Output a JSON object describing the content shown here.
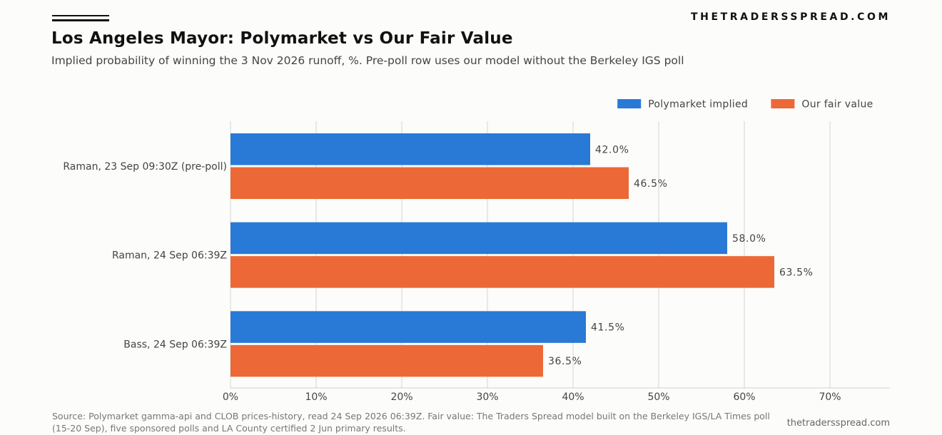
{
  "brand": "THETRADERSSPREAD.COM",
  "chart_data": {
    "type": "bar",
    "orientation": "horizontal",
    "title": "Los Angeles Mayor: Polymarket vs Our Fair Value",
    "subtitle": "Implied probability of winning the 3 Nov 2026 runoff, %. Pre-poll row uses our model without the Berkeley IGS poll",
    "categories": [
      "Raman, 23 Sep 09:30Z (pre-poll)",
      "Raman, 24 Sep 06:39Z",
      "Bass, 24 Sep 06:39Z"
    ],
    "series": [
      {
        "name": "Polymarket implied",
        "color": "#2979d6",
        "values": [
          42.0,
          58.0,
          41.5
        ],
        "labels": [
          "42.0%",
          "58.0%",
          "41.5%"
        ]
      },
      {
        "name": "Our fair value",
        "color": "#ec6836",
        "values": [
          46.5,
          63.5,
          36.5
        ],
        "labels": [
          "46.5%",
          "63.5%",
          "36.5%"
        ]
      }
    ],
    "xlim": [
      0,
      77
    ],
    "xticks": [
      0,
      10,
      20,
      30,
      40,
      50,
      60,
      70
    ],
    "xtick_labels": [
      "0%",
      "10%",
      "20%",
      "30%",
      "40%",
      "50%",
      "60%",
      "70%"
    ],
    "grid": "vertical",
    "legend": "top-right"
  },
  "footer": {
    "source": "Source: Polymarket gamma-api and CLOB prices-history, read 24 Sep 2026 06:39Z. Fair value: The Traders Spread model built on the Berkeley IGS/LA Times poll (15-20 Sep), five sponsored polls and LA County certified 2 Jun primary results.",
    "site": "thetradersspread.com"
  }
}
